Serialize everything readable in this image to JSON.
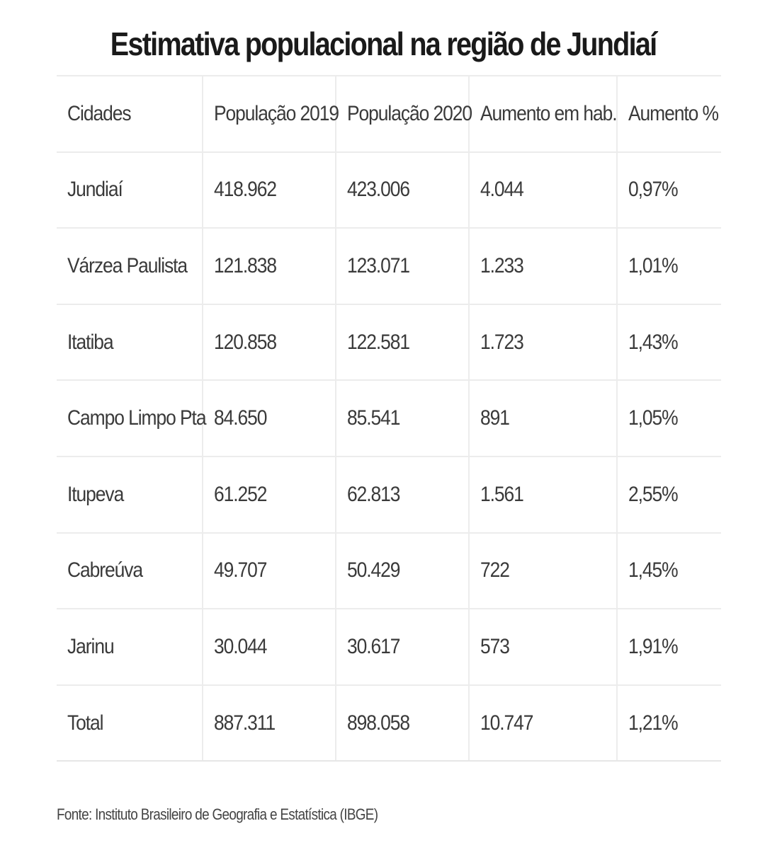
{
  "title": "Estimativa populacional na região de Jundiaí",
  "table": {
    "headers": [
      "Cidades",
      "População 2019",
      "População 2020",
      "Aumento em hab.",
      "Aumento %"
    ],
    "rows": [
      [
        "Jundiaí",
        "418.962",
        "423.006",
        "4.044",
        "0,97%"
      ],
      [
        "Várzea Paulista",
        "121.838",
        "123.071",
        "1.233",
        "1,01%"
      ],
      [
        "Itatiba",
        "120.858",
        "122.581",
        "1.723",
        "1,43%"
      ],
      [
        "Campo Limpo Pta",
        "84.650",
        "85.541",
        "891",
        "1,05%"
      ],
      [
        "Itupeva",
        "61.252",
        "62.813",
        "1.561",
        "2,55%"
      ],
      [
        "Cabreúva",
        "49.707",
        "50.429",
        "722",
        "1,45%"
      ],
      [
        "Jarinu",
        "30.044",
        "30.617",
        "573",
        "1,91%"
      ],
      [
        "Total",
        "887.311",
        "898.058",
        "10.747",
        "1,21%"
      ]
    ]
  },
  "source": "Fonte: Instituto Brasileiro de Geografia e Estatística (IBGE)"
}
